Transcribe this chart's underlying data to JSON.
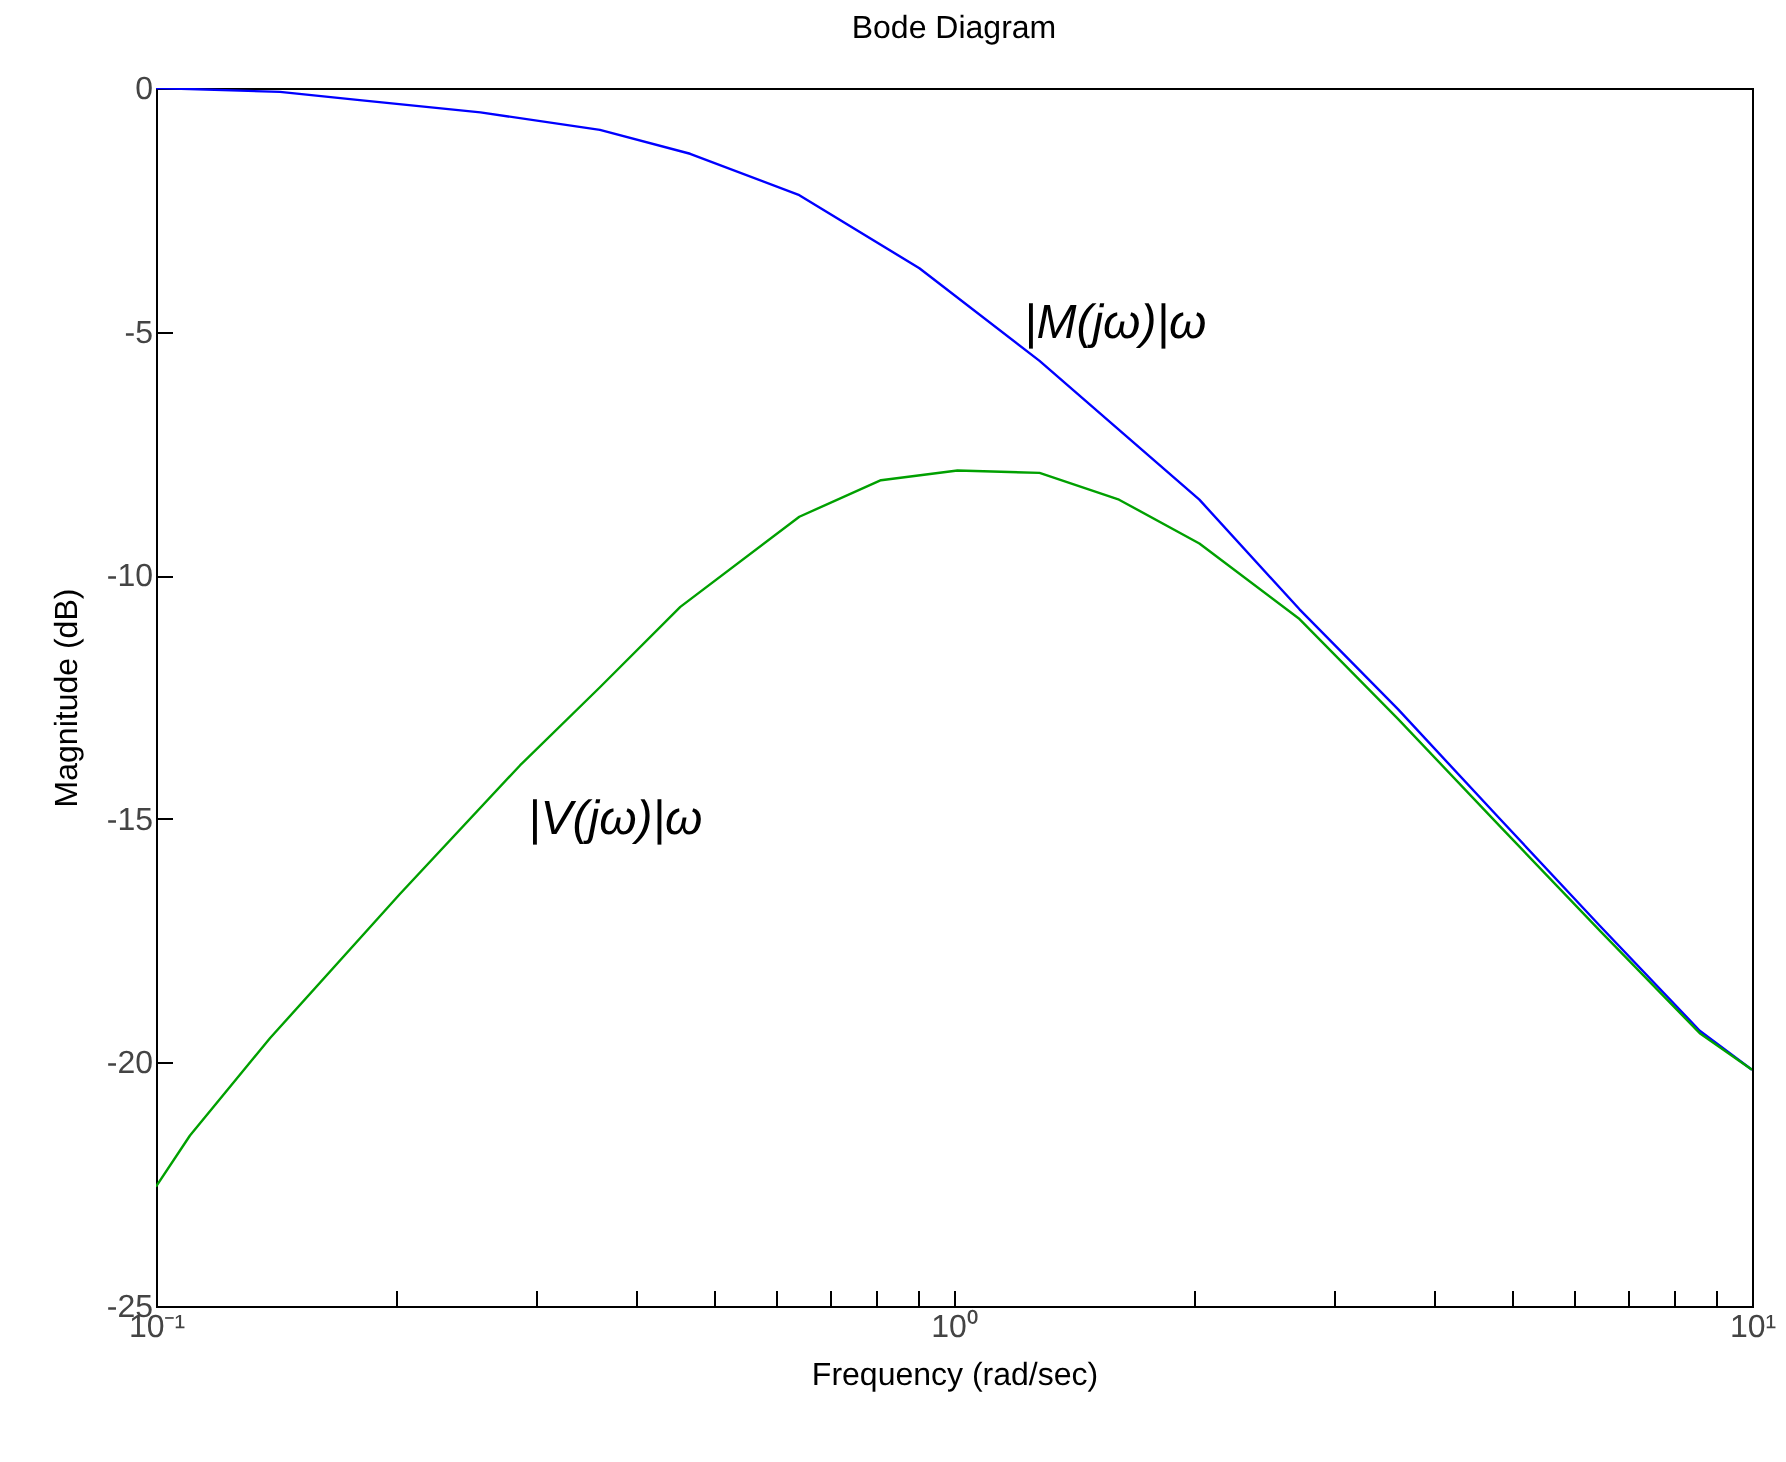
{
  "chart_data": {
    "type": "line",
    "title": "Bode Diagram",
    "xlabel": "Frequency  (rad/sec)",
    "ylabel": "Magnitude (dB)",
    "log": "x",
    "xlim": [
      0.1,
      10
    ],
    "ylim": [
      -25,
      0
    ],
    "xticks": [
      {
        "value": 0.1,
        "label": "10⁻¹"
      },
      {
        "value": 0.2,
        "label": null
      },
      {
        "value": 0.3,
        "label": null
      },
      {
        "value": 0.4,
        "label": null
      },
      {
        "value": 0.5,
        "label": null
      },
      {
        "value": 0.6,
        "label": null
      },
      {
        "value": 0.7,
        "label": null
      },
      {
        "value": 0.8,
        "label": null
      },
      {
        "value": 0.9,
        "label": null
      },
      {
        "value": 1,
        "label": "10⁰"
      },
      {
        "value": 2,
        "label": null
      },
      {
        "value": 3,
        "label": null
      },
      {
        "value": 4,
        "label": null
      },
      {
        "value": 5,
        "label": null
      },
      {
        "value": 6,
        "label": null
      },
      {
        "value": 7,
        "label": null
      },
      {
        "value": 8,
        "label": null
      },
      {
        "value": 9,
        "label": null
      },
      {
        "value": 10,
        "label": "10¹"
      }
    ],
    "yticks": [
      -25,
      -20,
      -15,
      -10,
      -5,
      0
    ],
    "series": [
      {
        "color": "#0000ff",
        "x": [
          0.1,
          0.143,
          0.18,
          0.255,
          0.36,
          0.467,
          0.64,
          0.905,
          1.28,
          2.03,
          2.71,
          3.6,
          4.83,
          6.45,
          8.6,
          10
        ],
        "values": [
          0,
          -0.08,
          -0.25,
          -0.5,
          -0.86,
          -1.35,
          -2.2,
          -3.7,
          -5.6,
          -8.45,
          -10.7,
          -12.75,
          -15.0,
          -17.2,
          -19.35,
          -20.15
        ]
      },
      {
        "color": "#00a000",
        "x": [
          0.1,
          0.1103,
          0.139,
          0.202,
          0.286,
          0.36,
          0.454,
          0.64,
          0.81,
          1.01,
          1.28,
          1.61,
          2.03,
          2.71,
          3.6,
          4.83,
          6.45,
          8.6,
          10
        ],
        "values": [
          -22.55,
          -21.5,
          -19.5,
          -16.55,
          -13.9,
          -12.3,
          -10.65,
          -8.8,
          -8.05,
          -7.85,
          -7.9,
          -8.45,
          -9.35,
          -10.9,
          -12.95,
          -15.15,
          -17.3,
          -19.4,
          -20.15
        ]
      }
    ],
    "annotations": [
      "|M(jω)|ω",
      "|V(jω)|ω"
    ]
  }
}
